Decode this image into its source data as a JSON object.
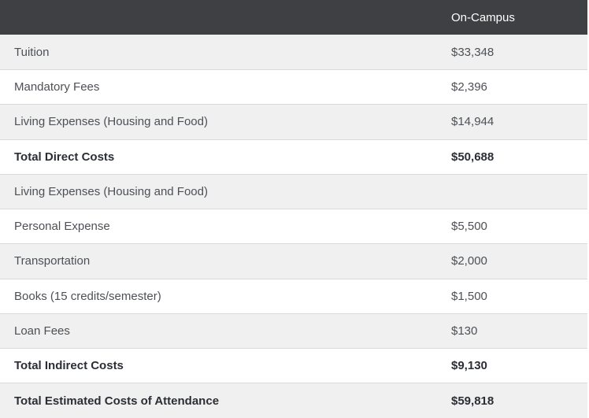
{
  "table": {
    "header": {
      "label_column": "",
      "value_column": "On-Campus"
    },
    "rows": [
      {
        "label": "Tuition",
        "value": "$33,348",
        "bold": false
      },
      {
        "label": "Mandatory Fees",
        "value": "$2,396",
        "bold": false
      },
      {
        "label": "Living Expenses (Housing and Food)",
        "value": "$14,944",
        "bold": false
      },
      {
        "label": "Total Direct Costs",
        "value": "$50,688",
        "bold": true
      },
      {
        "label": "Living Expenses (Housing and Food)",
        "value": "",
        "bold": false
      },
      {
        "label": "Personal Expense",
        "value": "$5,500",
        "bold": false
      },
      {
        "label": "Transportation",
        "value": "$2,000",
        "bold": false
      },
      {
        "label": "Books (15 credits/semester)",
        "value": "$1,500",
        "bold": false
      },
      {
        "label": "Loan Fees",
        "value": "$130",
        "bold": false
      },
      {
        "label": "Total Indirect Costs",
        "value": "$9,130",
        "bold": true
      },
      {
        "label": "Total Estimated Costs of Attendance",
        "value": "$59,818",
        "bold": true
      }
    ],
    "colors": {
      "header_bg": "#3e4043",
      "header_text": "#ffffff",
      "row_bg": "#ffffff",
      "row_alt_bg": "#f0f0f0",
      "border": "#d9d9d9",
      "text": "#4d5055",
      "bold_text": "#2b2e34"
    }
  }
}
